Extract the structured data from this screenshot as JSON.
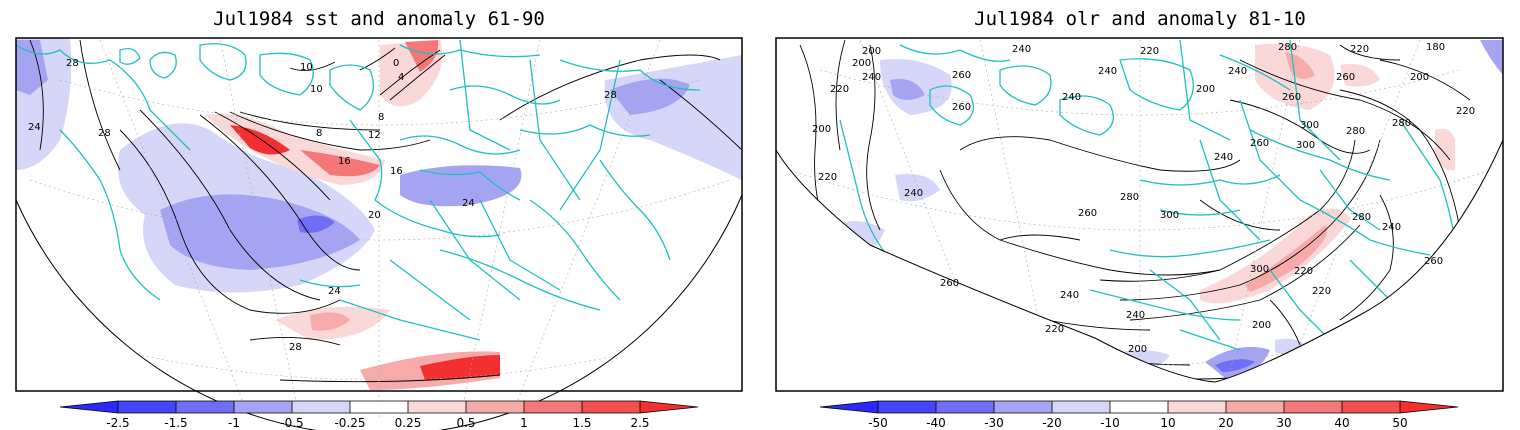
{
  "panels": [
    {
      "title": "Jul1984 sst and anomaly 61-90",
      "colorbar_ticks": [
        "-2.5",
        "-1.5",
        "-1",
        "-0.5",
        "-0.25",
        "0.25",
        "0.5",
        "1",
        "1.5",
        "2.5"
      ],
      "contour_labels": [
        "28",
        "24",
        "28",
        "10",
        "10",
        "4",
        "0",
        "8",
        "8",
        "12",
        "16",
        "16",
        "20",
        "24",
        "28",
        "24",
        "28"
      ]
    },
    {
      "title": "Jul1984 olr and anomaly 81-10",
      "colorbar_ticks": [
        "-50",
        "-40",
        "-30",
        "-20",
        "-10",
        "10",
        "20",
        "30",
        "40",
        "50"
      ],
      "contour_labels": [
        "200",
        "200",
        "220",
        "240",
        "260",
        "240",
        "200",
        "220",
        "240",
        "280",
        "220",
        "180",
        "260",
        "200",
        "220",
        "260",
        "240",
        "240",
        "200",
        "260",
        "300",
        "280",
        "300",
        "280",
        "260",
        "240",
        "280",
        "300",
        "220",
        "240",
        "260",
        "280",
        "300",
        "220",
        "240",
        "260",
        "200",
        "220",
        "200",
        "240",
        "220",
        "240",
        "260"
      ]
    }
  ],
  "colors": {
    "coast": "#20c0c0",
    "neg_strong": "#2a2aff",
    "neg_mid": "#6f6ff5",
    "neg_light": "#a4a4f2",
    "neg_faint": "#d6d6f8",
    "pos_faint": "#fad8d8",
    "pos_light": "#f6aaaa",
    "pos_mid": "#f47878",
    "pos_strong": "#f33030"
  }
}
